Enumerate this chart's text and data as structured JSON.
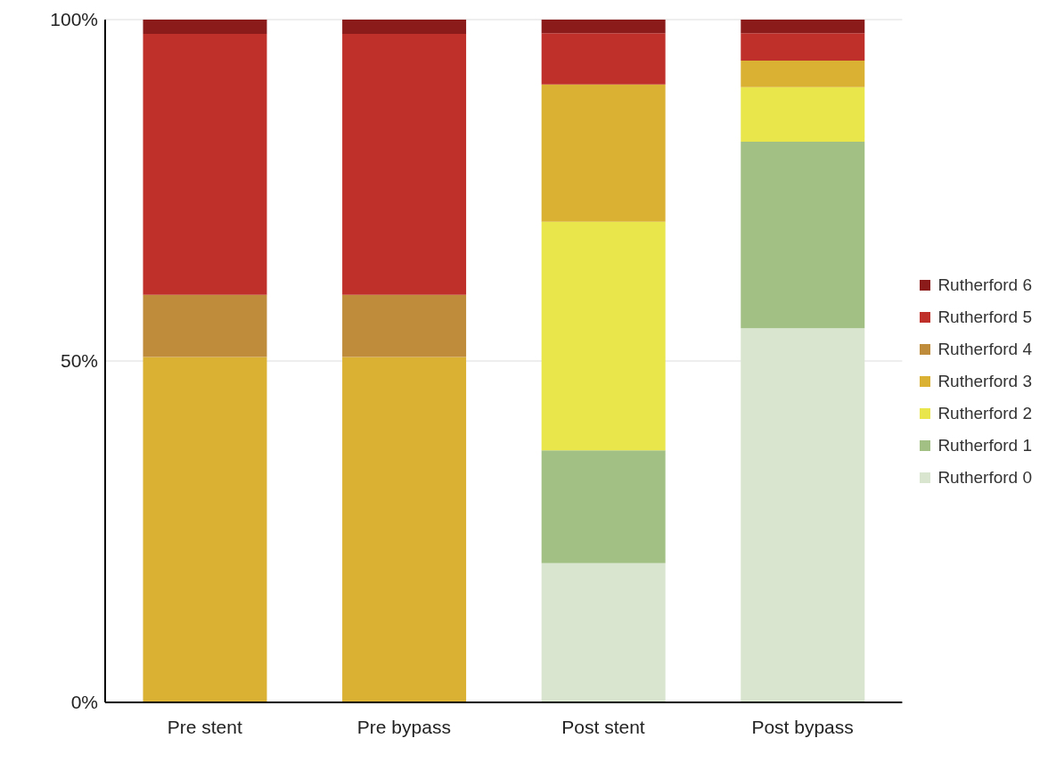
{
  "chart_data": {
    "type": "bar",
    "stacked": true,
    "categories": [
      "Pre stent",
      "Pre bypass",
      "Post stent",
      "Post bypass"
    ],
    "series": [
      {
        "name": "Rutherford 0",
        "color": "#d9e5cf",
        "values": [
          0,
          0,
          20.4,
          54.8
        ]
      },
      {
        "name": "Rutherford 1",
        "color": "#a2c084",
        "values": [
          0,
          0,
          16.5,
          27.3
        ]
      },
      {
        "name": "Rutherford 2",
        "color": "#e8e64a",
        "values": [
          0,
          0,
          33.5,
          8.0
        ]
      },
      {
        "name": "Rutherford 3",
        "color": "#dbb133",
        "values": [
          50.6,
          50.6,
          20.1,
          3.9
        ]
      },
      {
        "name": "Rutherford 4",
        "color": "#bf8c3c",
        "values": [
          9.1,
          9.1,
          0,
          0
        ]
      },
      {
        "name": "Rutherford 5",
        "color": "#c0302b",
        "values": [
          38.2,
          38.2,
          7.5,
          4.0
        ]
      },
      {
        "name": "Rutherford 6",
        "color": "#8b1a1a",
        "values": [
          2.1,
          2.1,
          2.0,
          2.0
        ]
      }
    ],
    "ylim": [
      0,
      100
    ],
    "yticks": [
      {
        "value": 0,
        "label": "0%"
      },
      {
        "value": 50,
        "label": "50%"
      },
      {
        "value": 100,
        "label": "100%"
      }
    ],
    "grid": "y",
    "legend": "right"
  }
}
